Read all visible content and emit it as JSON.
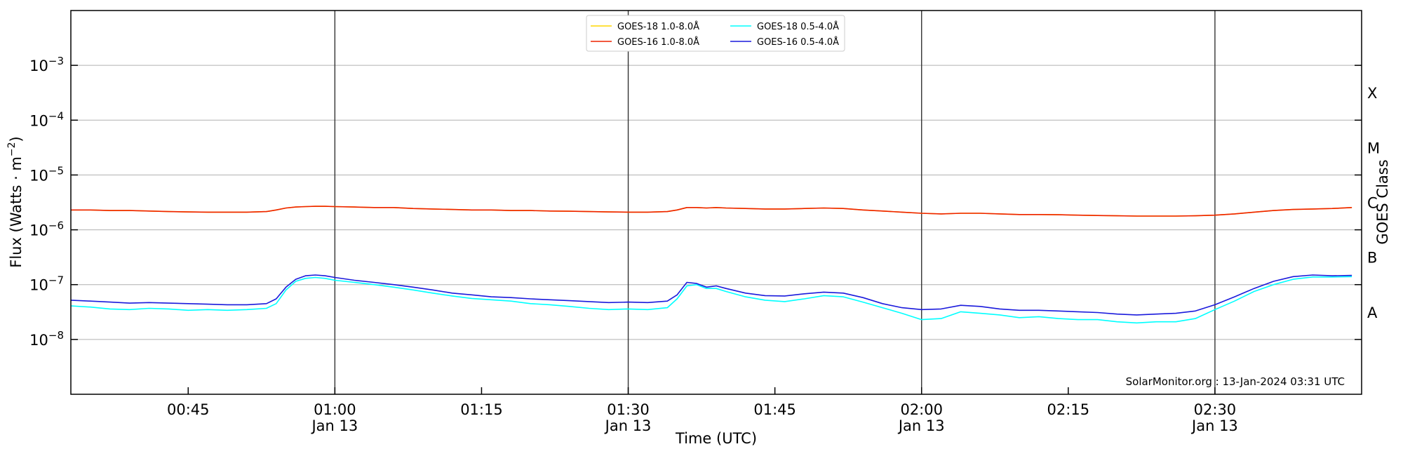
{
  "chart_data": {
    "type": "line",
    "xlabel": "Time (UTC)",
    "ylabel_prefix": "Flux (Watts · m",
    "ylabel_exp": "−2",
    "ylabel_suffix": ")",
    "right_label": "GOES Class",
    "credit": "SolarMonitor.org : 13-Jan-2024 03:31 UTC",
    "y_scale": "log",
    "ylim": [
      1e-09,
      0.01
    ],
    "x_start_minutes": 33,
    "x_end_minutes": 165,
    "grid": "horizontal at decades",
    "legend_position": "top-center",
    "x_ticks": [
      {
        "minute": 45,
        "label": "00:45",
        "sub": ""
      },
      {
        "minute": 60,
        "label": "01:00",
        "sub": "Jan 13"
      },
      {
        "minute": 75,
        "label": "01:15",
        "sub": ""
      },
      {
        "minute": 90,
        "label": "01:30",
        "sub": "Jan 13"
      },
      {
        "minute": 105,
        "label": "01:45",
        "sub": ""
      },
      {
        "minute": 120,
        "label": "02:00",
        "sub": "Jan 13"
      },
      {
        "minute": 135,
        "label": "02:15",
        "sub": ""
      },
      {
        "minute": 150,
        "label": "02:30",
        "sub": "Jan 13"
      }
    ],
    "day_markers": [
      60,
      90,
      120,
      150
    ],
    "y_ticks": [
      {
        "exp": -8,
        "label": "10",
        "sup": "−8"
      },
      {
        "exp": -7,
        "label": "10",
        "sup": "−7"
      },
      {
        "exp": -6,
        "label": "10",
        "sup": "−6"
      },
      {
        "exp": -5,
        "label": "10",
        "sup": "−5"
      },
      {
        "exp": -4,
        "label": "10",
        "sup": "−4"
      },
      {
        "exp": -3,
        "label": "10",
        "sup": "−3"
      }
    ],
    "goes_classes": [
      {
        "label": "A",
        "exp": -7.5
      },
      {
        "label": "B",
        "exp": -6.5
      },
      {
        "label": "C",
        "exp": -5.5
      },
      {
        "label": "M",
        "exp": -4.5
      },
      {
        "label": "X",
        "exp": -3.5
      }
    ],
    "x_minutes": [
      33,
      35,
      37,
      39,
      41,
      43,
      45,
      47,
      49,
      51,
      53,
      54,
      55,
      56,
      57,
      58,
      59,
      60,
      62,
      64,
      66,
      68,
      70,
      72,
      74,
      76,
      78,
      80,
      82,
      84,
      86,
      88,
      90,
      92,
      94,
      95,
      96,
      97,
      98,
      99,
      100,
      102,
      104,
      106,
      108,
      110,
      112,
      114,
      116,
      118,
      120,
      122,
      124,
      126,
      128,
      130,
      132,
      134,
      136,
      138,
      140,
      142,
      144,
      146,
      148,
      150,
      152,
      154,
      156,
      158,
      160,
      162,
      164
    ],
    "series": [
      {
        "name": "GOES-18 1.0-8.0Å",
        "color": "#ffd700",
        "values": [
          2.3e-06,
          2.3e-06,
          2.25e-06,
          2.25e-06,
          2.2e-06,
          2.15e-06,
          2.12e-06,
          2.1e-06,
          2.1e-06,
          2.1e-06,
          2.15e-06,
          2.3e-06,
          2.5e-06,
          2.6e-06,
          2.65e-06,
          2.68e-06,
          2.68e-06,
          2.65e-06,
          2.6e-06,
          2.55e-06,
          2.55e-06,
          2.45e-06,
          2.4e-06,
          2.35e-06,
          2.3e-06,
          2.3e-06,
          2.25e-06,
          2.25e-06,
          2.2e-06,
          2.18e-06,
          2.15e-06,
          2.12e-06,
          2.1e-06,
          2.1e-06,
          2.15e-06,
          2.3e-06,
          2.55e-06,
          2.55e-06,
          2.5e-06,
          2.55e-06,
          2.5e-06,
          2.45e-06,
          2.4e-06,
          2.4e-06,
          2.45e-06,
          2.5e-06,
          2.45e-06,
          2.3e-06,
          2.2e-06,
          2.1e-06,
          2e-06,
          1.95e-06,
          2e-06,
          2e-06,
          1.95e-06,
          1.9e-06,
          1.9e-06,
          1.88e-06,
          1.85e-06,
          1.82e-06,
          1.8e-06,
          1.78e-06,
          1.78e-06,
          1.78e-06,
          1.8e-06,
          1.85e-06,
          1.95e-06,
          2.1e-06,
          2.25e-06,
          2.35e-06,
          2.4e-06,
          2.45e-06,
          2.55e-06
        ]
      },
      {
        "name": "GOES-16 1.0-8.0Å",
        "color": "#ee2200",
        "values": [
          2.3e-06,
          2.3e-06,
          2.25e-06,
          2.25e-06,
          2.2e-06,
          2.15e-06,
          2.12e-06,
          2.1e-06,
          2.1e-06,
          2.1e-06,
          2.15e-06,
          2.3e-06,
          2.5e-06,
          2.6e-06,
          2.65e-06,
          2.68e-06,
          2.68e-06,
          2.65e-06,
          2.6e-06,
          2.55e-06,
          2.55e-06,
          2.45e-06,
          2.4e-06,
          2.35e-06,
          2.3e-06,
          2.3e-06,
          2.25e-06,
          2.25e-06,
          2.2e-06,
          2.18e-06,
          2.15e-06,
          2.12e-06,
          2.1e-06,
          2.1e-06,
          2.15e-06,
          2.3e-06,
          2.55e-06,
          2.55e-06,
          2.5e-06,
          2.55e-06,
          2.5e-06,
          2.45e-06,
          2.4e-06,
          2.4e-06,
          2.45e-06,
          2.5e-06,
          2.45e-06,
          2.3e-06,
          2.2e-06,
          2.1e-06,
          2e-06,
          1.95e-06,
          2e-06,
          2e-06,
          1.95e-06,
          1.9e-06,
          1.9e-06,
          1.88e-06,
          1.85e-06,
          1.82e-06,
          1.8e-06,
          1.78e-06,
          1.78e-06,
          1.78e-06,
          1.8e-06,
          1.85e-06,
          1.95e-06,
          2.1e-06,
          2.25e-06,
          2.35e-06,
          2.4e-06,
          2.45e-06,
          2.55e-06
        ]
      },
      {
        "name": "GOES-18 0.5-4.0Å",
        "color": "#00ffff",
        "values": [
          4.1e-08,
          3.9e-08,
          3.6e-08,
          3.5e-08,
          3.7e-08,
          3.6e-08,
          3.4e-08,
          3.5e-08,
          3.4e-08,
          3.5e-08,
          3.7e-08,
          4.5e-08,
          8e-08,
          1.15e-07,
          1.3e-07,
          1.35e-07,
          1.3e-07,
          1.2e-07,
          1.1e-07,
          1e-07,
          9e-08,
          8e-08,
          7e-08,
          6.2e-08,
          5.6e-08,
          5.3e-08,
          5e-08,
          4.5e-08,
          4.3e-08,
          4e-08,
          3.7e-08,
          3.5e-08,
          3.6e-08,
          3.5e-08,
          3.8e-08,
          5.5e-08,
          9.5e-08,
          1e-07,
          8.5e-08,
          8.5e-08,
          7.5e-08,
          6e-08,
          5.2e-08,
          4.9e-08,
          5.5e-08,
          6.3e-08,
          6e-08,
          4.8e-08,
          3.8e-08,
          3e-08,
          2.3e-08,
          2.4e-08,
          3.2e-08,
          3e-08,
          2.8e-08,
          2.5e-08,
          2.6e-08,
          2.4e-08,
          2.3e-08,
          2.3e-08,
          2.1e-08,
          2e-08,
          2.1e-08,
          2.1e-08,
          2.4e-08,
          3.5e-08,
          5e-08,
          7.5e-08,
          1e-07,
          1.25e-07,
          1.38e-07,
          1.38e-07,
          1.4e-07
        ]
      },
      {
        "name": "GOES-16 0.5-4.0Å",
        "color": "#1a1adc",
        "values": [
          5.2e-08,
          5e-08,
          4.8e-08,
          4.6e-08,
          4.7e-08,
          4.6e-08,
          4.5e-08,
          4.4e-08,
          4.3e-08,
          4.3e-08,
          4.5e-08,
          5.5e-08,
          9e-08,
          1.25e-07,
          1.45e-07,
          1.5e-07,
          1.45e-07,
          1.35e-07,
          1.2e-07,
          1.1e-07,
          1e-07,
          9e-08,
          8e-08,
          7e-08,
          6.5e-08,
          6e-08,
          5.8e-08,
          5.5e-08,
          5.3e-08,
          5.1e-08,
          4.9e-08,
          4.7e-08,
          4.8e-08,
          4.7e-08,
          5e-08,
          6.5e-08,
          1.1e-07,
          1.05e-07,
          9e-08,
          9.5e-08,
          8.5e-08,
          7e-08,
          6.3e-08,
          6.2e-08,
          6.8e-08,
          7.3e-08,
          7e-08,
          5.8e-08,
          4.5e-08,
          3.8e-08,
          3.5e-08,
          3.6e-08,
          4.2e-08,
          4e-08,
          3.6e-08,
          3.4e-08,
          3.4e-08,
          3.3e-08,
          3.2e-08,
          3.1e-08,
          2.9e-08,
          2.8e-08,
          2.9e-08,
          3e-08,
          3.3e-08,
          4.3e-08,
          6e-08,
          8.5e-08,
          1.15e-07,
          1.4e-07,
          1.5e-07,
          1.45e-07,
          1.47e-07
        ]
      }
    ]
  }
}
